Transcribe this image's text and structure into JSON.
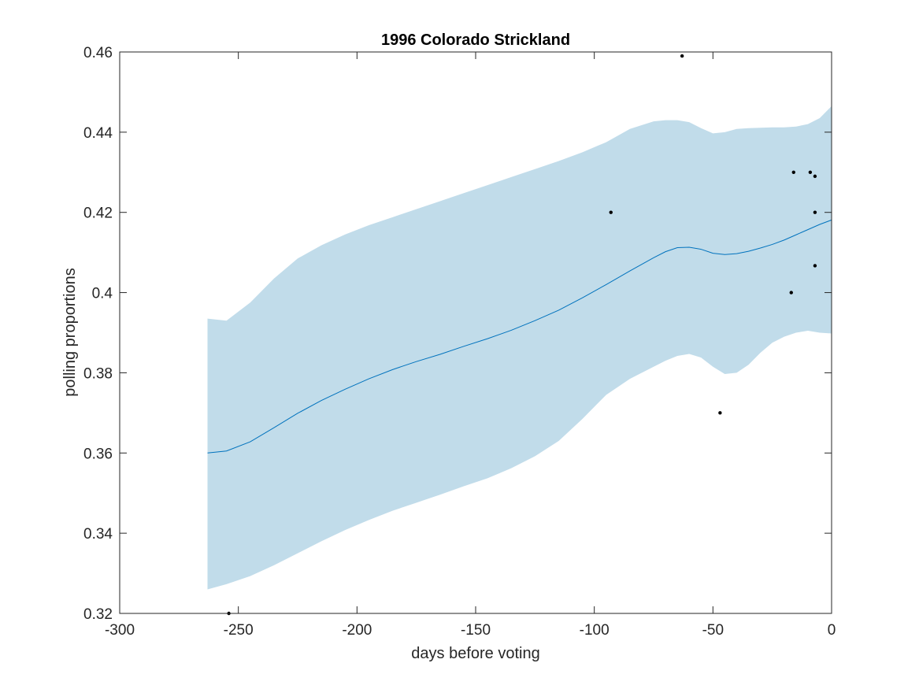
{
  "chart_data": {
    "type": "line",
    "title": "1996 Colorado Strickland",
    "xlabel": "days before voting",
    "ylabel": "polling proportions",
    "xlim": [
      -300,
      0
    ],
    "ylim": [
      0.32,
      0.46
    ],
    "x_ticks": [
      -300,
      -250,
      -200,
      -150,
      -100,
      -50,
      0
    ],
    "x_tick_labels": [
      "-300",
      "-250",
      "-200",
      "-150",
      "-100",
      "-50",
      "0"
    ],
    "y_ticks": [
      0.32,
      0.34,
      0.36,
      0.38,
      0.4,
      0.42,
      0.44,
      0.46
    ],
    "y_tick_labels": [
      "0.32",
      "0.34",
      "0.36",
      "0.38",
      "0.4",
      "0.42",
      "0.44",
      "0.46"
    ],
    "grid": false,
    "colors": {
      "band": "#c1dcea",
      "mean_line": "#0072bd",
      "points": "#000000",
      "axes": "#262626"
    },
    "series": [
      {
        "type": "line",
        "x": [
          -263,
          -255,
          -245,
          -235,
          -225,
          -215,
          -205,
          -195,
          -185,
          -175,
          -165,
          -155,
          -145,
          -135,
          -125,
          -115,
          -105,
          -95,
          -85,
          -75,
          -70,
          -65,
          -60,
          -55,
          -50,
          -45,
          -40,
          -35,
          -30,
          -25,
          -20,
          -15,
          -10,
          -5,
          0
        ],
        "values": [
          0.36,
          0.3605,
          0.3628,
          0.3663,
          0.3699,
          0.3731,
          0.3759,
          0.3785,
          0.3808,
          0.3828,
          0.3846,
          0.3866,
          0.3885,
          0.3906,
          0.393,
          0.3956,
          0.3987,
          0.402,
          0.4054,
          0.4087,
          0.4102,
          0.4112,
          0.4113,
          0.4108,
          0.4098,
          0.4095,
          0.4097,
          0.4103,
          0.4111,
          0.412,
          0.4131,
          0.4144,
          0.4157,
          0.417,
          0.4181
        ]
      },
      {
        "type": "band",
        "x": [
          -263,
          -255,
          -245,
          -235,
          -225,
          -215,
          -205,
          -195,
          -185,
          -175,
          -165,
          -155,
          -145,
          -135,
          -125,
          -115,
          -105,
          -95,
          -85,
          -75,
          -70,
          -65,
          -60,
          -55,
          -50,
          -45,
          -40,
          -35,
          -30,
          -25,
          -20,
          -15,
          -10,
          -5,
          0
        ],
        "upper": [
          0.3935,
          0.393,
          0.3975,
          0.4035,
          0.4085,
          0.4118,
          0.4145,
          0.4168,
          0.4188,
          0.4208,
          0.4228,
          0.4248,
          0.4268,
          0.4288,
          0.4308,
          0.4328,
          0.435,
          0.4375,
          0.4408,
          0.4427,
          0.443,
          0.443,
          0.4425,
          0.441,
          0.4397,
          0.44,
          0.4408,
          0.441,
          0.4411,
          0.4412,
          0.4412,
          0.4414,
          0.442,
          0.4435,
          0.4465
        ],
        "lower": [
          0.326,
          0.3273,
          0.3293,
          0.332,
          0.335,
          0.338,
          0.3408,
          0.3433,
          0.3456,
          0.3476,
          0.3496,
          0.3517,
          0.3537,
          0.3562,
          0.3592,
          0.363,
          0.3685,
          0.3745,
          0.3785,
          0.3815,
          0.383,
          0.3842,
          0.3847,
          0.3838,
          0.3815,
          0.3797,
          0.38,
          0.382,
          0.385,
          0.3875,
          0.389,
          0.39,
          0.3905,
          0.39,
          0.3898
        ]
      },
      {
        "type": "scatter",
        "x": [
          -63,
          -93,
          -47,
          -16,
          -9,
          -7,
          -7,
          -7,
          -17,
          -254
        ],
        "values": [
          0.459,
          0.42,
          0.37,
          0.43,
          0.43,
          0.429,
          0.42,
          0.4067,
          0.4,
          0.32
        ]
      }
    ]
  }
}
